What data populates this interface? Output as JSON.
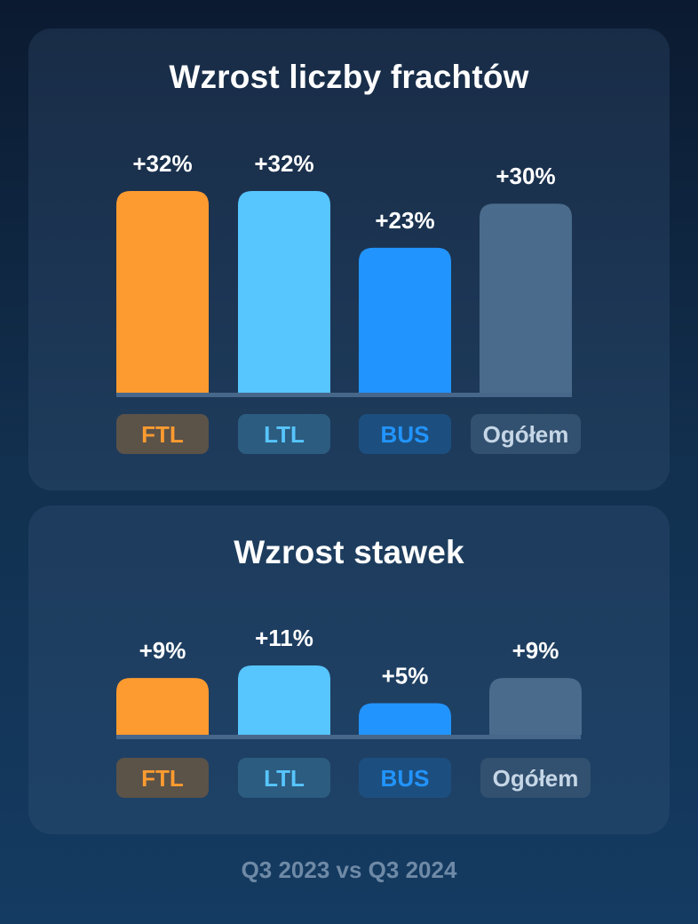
{
  "colors": {
    "ftl": "#fd9b30",
    "ltl": "#57c5fe",
    "bus": "#2294fe",
    "total": "#4a6b8c",
    "baseline": "#47678a",
    "value_label": "#ffffff",
    "badge_bg": {
      "ftl": "#5b5248",
      "ltl": "#2c5c80",
      "bus": "#1c4f7f",
      "total": "#32506f"
    },
    "badge_text": {
      "ftl": "#fd9b30",
      "ltl": "#57c5fe",
      "bus": "#2294fe",
      "total": "#c5d6e6"
    }
  },
  "footer": "Q3 2023 vs Q3 2024",
  "chart_data": [
    {
      "type": "bar",
      "title": "Wzrost liczby frachtów",
      "categories": [
        "FTL",
        "LTL",
        "BUS",
        "Ogółem"
      ],
      "values": [
        32,
        32,
        23,
        30
      ],
      "value_labels": [
        "+32%",
        "+32%",
        "+23%",
        "+30%"
      ],
      "unit": "%",
      "ylim": [
        0,
        32
      ],
      "grid": false,
      "legend": "none"
    },
    {
      "type": "bar",
      "title": "Wzrost stawek",
      "categories": [
        "FTL",
        "LTL",
        "BUS",
        "Ogółem"
      ],
      "values": [
        9,
        11,
        5,
        9
      ],
      "value_labels": [
        "+9%",
        "+11%",
        "+5%",
        "+9%"
      ],
      "unit": "%",
      "ylim": [
        0,
        11
      ],
      "grid": false,
      "legend": "none"
    }
  ]
}
